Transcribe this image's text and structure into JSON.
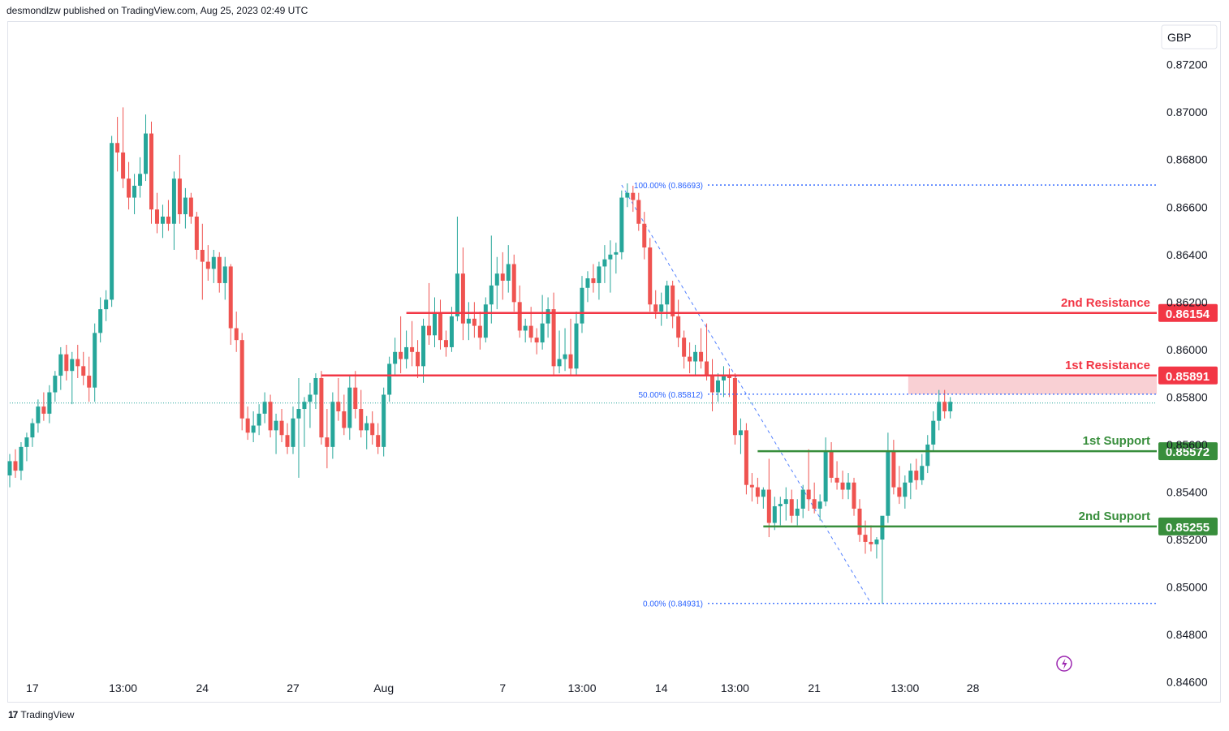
{
  "header": {
    "published_by": "desmondlzw published on TradingView.com, Aug 25, 2023 02:49 UTC"
  },
  "footer": {
    "brand": "TradingView"
  },
  "currency": "GBP",
  "colors": {
    "bull": "#26a69a",
    "bear": "#ef5350",
    "resistance": "#f23645",
    "support": "#388e3c",
    "fib": "#2962ff",
    "text": "#131722"
  },
  "chart_data": {
    "type": "candlestick",
    "ylim": [
      0.8452,
      0.8738
    ],
    "y_ticks": [
      "0.87200",
      "0.87000",
      "0.86800",
      "0.86600",
      "0.86400",
      "0.86200",
      "0.86000",
      "0.85800",
      "0.85600",
      "0.85400",
      "0.85200",
      "0.85000",
      "0.84800",
      "0.84600"
    ],
    "x_ticks": [
      {
        "label": "17",
        "index": 4
      },
      {
        "label": "13:00",
        "index": 20
      },
      {
        "label": "24",
        "index": 34
      },
      {
        "label": "27",
        "index": 50
      },
      {
        "label": "Aug",
        "index": 66
      },
      {
        "label": "7",
        "index": 87
      },
      {
        "label": "13:00",
        "index": 101
      },
      {
        "label": "14",
        "index": 115
      },
      {
        "label": "13:00",
        "index": 128
      },
      {
        "label": "21",
        "index": 142
      },
      {
        "label": "13:00",
        "index": 158
      },
      {
        "label": "28",
        "index": 170
      }
    ],
    "levels": [
      {
        "name": "2nd Resistance",
        "price": 0.86154,
        "label": "0.86154",
        "kind": "resistance",
        "from_index": 70
      },
      {
        "name": "1st Resistance",
        "price": 0.85891,
        "label": "0.85891",
        "kind": "resistance",
        "from_index": 55
      },
      {
        "name": "1st Support",
        "price": 0.85572,
        "label": "0.85572",
        "kind": "support",
        "from_index": 132
      },
      {
        "name": "2nd Support",
        "price": 0.85255,
        "label": "0.85255",
        "kind": "support",
        "from_index": 133
      }
    ],
    "fib": [
      {
        "label": "100.00% (0.86693)",
        "price": 0.86693
      },
      {
        "label": "50.00% (0.85812)",
        "price": 0.85812
      },
      {
        "label": "0.00% (0.84931)",
        "price": 0.84931
      }
    ],
    "fib_line": {
      "from_index": 108,
      "from_price": 0.86693,
      "to_index": 152,
      "to_price": 0.84931
    },
    "resistance_zone": {
      "from_index": 159,
      "low": 0.85812,
      "high": 0.85891
    },
    "last_price": 0.85775,
    "candles": [
      [
        0.8547,
        0.8556,
        0.8542,
        0.8553
      ],
      [
        0.8553,
        0.8558,
        0.8546,
        0.8549
      ],
      [
        0.8549,
        0.8561,
        0.8545,
        0.8559
      ],
      [
        0.8559,
        0.8565,
        0.8553,
        0.8563
      ],
      [
        0.8563,
        0.8571,
        0.8559,
        0.8569
      ],
      [
        0.8569,
        0.8579,
        0.8565,
        0.8576
      ],
      [
        0.8576,
        0.8582,
        0.857,
        0.8573
      ],
      [
        0.8573,
        0.8585,
        0.8569,
        0.8582
      ],
      [
        0.8582,
        0.8591,
        0.8578,
        0.8589
      ],
      [
        0.8589,
        0.8601,
        0.8583,
        0.8598
      ],
      [
        0.8598,
        0.8602,
        0.8587,
        0.8591
      ],
      [
        0.8591,
        0.8599,
        0.8577,
        0.8596
      ],
      [
        0.8596,
        0.8602,
        0.8588,
        0.8593
      ],
      [
        0.8593,
        0.8599,
        0.8585,
        0.8589
      ],
      [
        0.8589,
        0.8597,
        0.8578,
        0.8584
      ],
      [
        0.8584,
        0.8611,
        0.8578,
        0.8607
      ],
      [
        0.8607,
        0.8622,
        0.8603,
        0.8617
      ],
      [
        0.8617,
        0.8625,
        0.8612,
        0.8621
      ],
      [
        0.8621,
        0.869,
        0.8618,
        0.8687
      ],
      [
        0.8687,
        0.8698,
        0.8675,
        0.8683
      ],
      [
        0.8683,
        0.8702,
        0.8668,
        0.8672
      ],
      [
        0.8672,
        0.8679,
        0.8659,
        0.8664
      ],
      [
        0.8664,
        0.8674,
        0.8657,
        0.8669
      ],
      [
        0.8669,
        0.8681,
        0.8664,
        0.8674
      ],
      [
        0.8674,
        0.8699,
        0.8671,
        0.8691
      ],
      [
        0.8691,
        0.8696,
        0.8653,
        0.8659
      ],
      [
        0.8659,
        0.8666,
        0.8649,
        0.8653
      ],
      [
        0.8653,
        0.8661,
        0.8647,
        0.8656
      ],
      [
        0.8656,
        0.8663,
        0.865,
        0.8653
      ],
      [
        0.8653,
        0.8675,
        0.8642,
        0.8672
      ],
      [
        0.8672,
        0.8682,
        0.8653,
        0.8657
      ],
      [
        0.8657,
        0.8668,
        0.8651,
        0.8664
      ],
      [
        0.8664,
        0.8666,
        0.8653,
        0.8656
      ],
      [
        0.8656,
        0.8658,
        0.8638,
        0.8642
      ],
      [
        0.8642,
        0.8653,
        0.8621,
        0.8637
      ],
      [
        0.8637,
        0.8644,
        0.8629,
        0.8634
      ],
      [
        0.8634,
        0.8642,
        0.8628,
        0.8639
      ],
      [
        0.8639,
        0.8641,
        0.8624,
        0.8628
      ],
      [
        0.8628,
        0.8639,
        0.8621,
        0.8635
      ],
      [
        0.8635,
        0.8636,
        0.8602,
        0.8609
      ],
      [
        0.8609,
        0.8616,
        0.8599,
        0.8604
      ],
      [
        0.8604,
        0.8607,
        0.8566,
        0.8571
      ],
      [
        0.8571,
        0.8576,
        0.8562,
        0.8565
      ],
      [
        0.8565,
        0.8574,
        0.8561,
        0.8568
      ],
      [
        0.8568,
        0.8577,
        0.8564,
        0.8573
      ],
      [
        0.8573,
        0.8582,
        0.8569,
        0.8578
      ],
      [
        0.8578,
        0.8581,
        0.8563,
        0.8566
      ],
      [
        0.8566,
        0.8573,
        0.8556,
        0.857
      ],
      [
        0.857,
        0.8575,
        0.8561,
        0.8564
      ],
      [
        0.8564,
        0.8569,
        0.8556,
        0.8559
      ],
      [
        0.8559,
        0.8576,
        0.8556,
        0.8571
      ],
      [
        0.8571,
        0.8588,
        0.8546,
        0.8575
      ],
      [
        0.8575,
        0.858,
        0.8559,
        0.8578
      ],
      [
        0.8578,
        0.8586,
        0.8567,
        0.8581
      ],
      [
        0.8581,
        0.859,
        0.8575,
        0.8588
      ],
      [
        0.8588,
        0.8591,
        0.856,
        0.8563
      ],
      [
        0.8563,
        0.8575,
        0.855,
        0.8559
      ],
      [
        0.8559,
        0.8582,
        0.8554,
        0.8578
      ],
      [
        0.8578,
        0.8588,
        0.857,
        0.8574
      ],
      [
        0.8574,
        0.8581,
        0.8564,
        0.8567
      ],
      [
        0.8567,
        0.8589,
        0.8562,
        0.8584
      ],
      [
        0.8584,
        0.8591,
        0.8571,
        0.8575
      ],
      [
        0.8575,
        0.8583,
        0.8563,
        0.8566
      ],
      [
        0.8566,
        0.8572,
        0.8558,
        0.8569
      ],
      [
        0.8569,
        0.8574,
        0.856,
        0.8564
      ],
      [
        0.8564,
        0.8569,
        0.8556,
        0.8559
      ],
      [
        0.8559,
        0.8584,
        0.8555,
        0.8581
      ],
      [
        0.8581,
        0.8597,
        0.8578,
        0.8594
      ],
      [
        0.8594,
        0.8605,
        0.8589,
        0.8599
      ],
      [
        0.8599,
        0.8614,
        0.859,
        0.8596
      ],
      [
        0.8596,
        0.8608,
        0.8592,
        0.8601
      ],
      [
        0.8601,
        0.8612,
        0.8593,
        0.8599
      ],
      [
        0.8599,
        0.8604,
        0.8588,
        0.8593
      ],
      [
        0.8593,
        0.8613,
        0.8586,
        0.861
      ],
      [
        0.861,
        0.8628,
        0.8602,
        0.8606
      ],
      [
        0.8606,
        0.8622,
        0.8601,
        0.8615
      ],
      [
        0.8615,
        0.8621,
        0.86,
        0.8604
      ],
      [
        0.8604,
        0.8608,
        0.8597,
        0.8601
      ],
      [
        0.8601,
        0.8618,
        0.8599,
        0.8614
      ],
      [
        0.8614,
        0.8656,
        0.8612,
        0.8632
      ],
      [
        0.8632,
        0.8643,
        0.8604,
        0.8611
      ],
      [
        0.8611,
        0.862,
        0.8604,
        0.8613
      ],
      [
        0.8613,
        0.862,
        0.8605,
        0.861
      ],
      [
        0.861,
        0.8616,
        0.86,
        0.8605
      ],
      [
        0.8605,
        0.8622,
        0.8603,
        0.8619
      ],
      [
        0.8619,
        0.8648,
        0.8611,
        0.8627
      ],
      [
        0.8627,
        0.8639,
        0.8617,
        0.8632
      ],
      [
        0.8632,
        0.8641,
        0.8621,
        0.8629
      ],
      [
        0.8629,
        0.8644,
        0.8624,
        0.8636
      ],
      [
        0.8636,
        0.864,
        0.8616,
        0.862
      ],
      [
        0.862,
        0.8627,
        0.8605,
        0.8608
      ],
      [
        0.8608,
        0.8613,
        0.8603,
        0.861
      ],
      [
        0.861,
        0.8618,
        0.8603,
        0.8605
      ],
      [
        0.8605,
        0.8609,
        0.8598,
        0.8603
      ],
      [
        0.8603,
        0.8623,
        0.86,
        0.8611
      ],
      [
        0.8611,
        0.8622,
        0.8605,
        0.8617
      ],
      [
        0.8617,
        0.8624,
        0.8589,
        0.8593
      ],
      [
        0.8593,
        0.8608,
        0.859,
        0.8596
      ],
      [
        0.8596,
        0.8609,
        0.8591,
        0.8598
      ],
      [
        0.8598,
        0.8613,
        0.8589,
        0.8592
      ],
      [
        0.8592,
        0.8616,
        0.8589,
        0.8611
      ],
      [
        0.8611,
        0.8631,
        0.8607,
        0.8626
      ],
      [
        0.8626,
        0.8633,
        0.862,
        0.863
      ],
      [
        0.863,
        0.8636,
        0.8624,
        0.8628
      ],
      [
        0.8628,
        0.8637,
        0.8621,
        0.8635
      ],
      [
        0.8635,
        0.8644,
        0.8628,
        0.8638
      ],
      [
        0.8638,
        0.8646,
        0.8624,
        0.864
      ],
      [
        0.864,
        0.8645,
        0.8632,
        0.8641
      ],
      [
        0.8641,
        0.8667,
        0.8638,
        0.8664
      ],
      [
        0.8664,
        0.867,
        0.866,
        0.8666
      ],
      [
        0.8666,
        0.8669,
        0.8658,
        0.8663
      ],
      [
        0.8663,
        0.8666,
        0.865,
        0.8653
      ],
      [
        0.8653,
        0.8658,
        0.8638,
        0.8643
      ],
      [
        0.8643,
        0.8647,
        0.8616,
        0.8619
      ],
      [
        0.8619,
        0.8625,
        0.8613,
        0.8616
      ],
      [
        0.8616,
        0.8624,
        0.861,
        0.8619
      ],
      [
        0.8619,
        0.8629,
        0.8613,
        0.8627
      ],
      [
        0.8627,
        0.8629,
        0.8609,
        0.8614
      ],
      [
        0.8614,
        0.8621,
        0.8601,
        0.8605
      ],
      [
        0.8605,
        0.8608,
        0.8592,
        0.8597
      ],
      [
        0.8597,
        0.8603,
        0.859,
        0.8595
      ],
      [
        0.8595,
        0.8602,
        0.8589,
        0.8599
      ],
      [
        0.8599,
        0.8609,
        0.8592,
        0.8595
      ],
      [
        0.8595,
        0.8611,
        0.8587,
        0.8589
      ],
      [
        0.8589,
        0.8596,
        0.8574,
        0.8582
      ],
      [
        0.8582,
        0.859,
        0.8578,
        0.8587
      ],
      [
        0.8587,
        0.8593,
        0.858,
        0.8589
      ],
      [
        0.8589,
        0.8592,
        0.858,
        0.8588
      ],
      [
        0.8588,
        0.859,
        0.856,
        0.8564
      ],
      [
        0.8564,
        0.8571,
        0.8556,
        0.8566
      ],
      [
        0.8566,
        0.8569,
        0.8539,
        0.8543
      ],
      [
        0.8543,
        0.8548,
        0.8536,
        0.8542
      ],
      [
        0.8542,
        0.8546,
        0.8535,
        0.8538
      ],
      [
        0.8538,
        0.8542,
        0.8533,
        0.8541
      ],
      [
        0.8541,
        0.8554,
        0.8521,
        0.8527
      ],
      [
        0.8527,
        0.8538,
        0.8524,
        0.8534
      ],
      [
        0.8534,
        0.8538,
        0.8526,
        0.8535
      ],
      [
        0.8535,
        0.8542,
        0.8528,
        0.8537
      ],
      [
        0.8537,
        0.8541,
        0.8527,
        0.853
      ],
      [
        0.853,
        0.8537,
        0.8526,
        0.8533
      ],
      [
        0.8533,
        0.8543,
        0.8529,
        0.8541
      ],
      [
        0.8541,
        0.8558,
        0.8532,
        0.8537
      ],
      [
        0.8537,
        0.8544,
        0.8531,
        0.8533
      ],
      [
        0.8533,
        0.8539,
        0.8528,
        0.8536
      ],
      [
        0.8536,
        0.8563,
        0.8534,
        0.8557
      ],
      [
        0.8557,
        0.8561,
        0.8544,
        0.8546
      ],
      [
        0.8546,
        0.8553,
        0.8541,
        0.8544
      ],
      [
        0.8544,
        0.8549,
        0.8537,
        0.8541
      ],
      [
        0.8541,
        0.8548,
        0.8537,
        0.8544
      ],
      [
        0.8544,
        0.8546,
        0.853,
        0.8533
      ],
      [
        0.8533,
        0.8537,
        0.8519,
        0.8522
      ],
      [
        0.8522,
        0.8528,
        0.8514,
        0.8519
      ],
      [
        0.8519,
        0.8526,
        0.8515,
        0.8518
      ],
      [
        0.8518,
        0.8521,
        0.8512,
        0.852
      ],
      [
        0.852,
        0.8528,
        0.8493,
        0.853
      ],
      [
        0.853,
        0.8565,
        0.8527,
        0.8557
      ],
      [
        0.8557,
        0.8562,
        0.8539,
        0.8542
      ],
      [
        0.8542,
        0.8551,
        0.8535,
        0.8538
      ],
      [
        0.8538,
        0.8547,
        0.8533,
        0.8544
      ],
      [
        0.8544,
        0.8552,
        0.8537,
        0.8549
      ],
      [
        0.8549,
        0.8554,
        0.8541,
        0.8545
      ],
      [
        0.8545,
        0.8556,
        0.8543,
        0.8551
      ],
      [
        0.8551,
        0.8564,
        0.8548,
        0.856
      ],
      [
        0.856,
        0.8574,
        0.8557,
        0.857
      ],
      [
        0.857,
        0.8583,
        0.8566,
        0.8578
      ],
      [
        0.8578,
        0.8583,
        0.8571,
        0.8574
      ],
      [
        0.8574,
        0.858,
        0.8571,
        0.8578
      ]
    ]
  }
}
